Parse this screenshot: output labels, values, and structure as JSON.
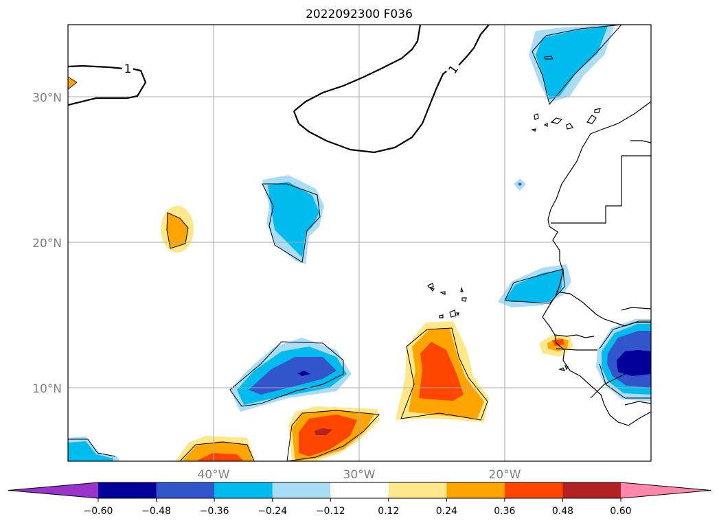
{
  "title": "2022092300 F036",
  "latitude_labels": [
    "30°N",
    "20°N",
    "10°N"
  ],
  "longitude_labels": [
    "40°W",
    "30°W",
    "20°W"
  ],
  "contour_label": "1",
  "colorbar": {
    "ticks": [
      "−0.60",
      "−0.48",
      "−0.36",
      "−0.24",
      "−0.12",
      "0.12",
      "0.24",
      "0.36",
      "0.48",
      "0.60"
    ],
    "colors": [
      "#9933cc",
      "#000099",
      "#3355cc",
      "#00bbee",
      "#aaddf5",
      "#ffffff",
      "#ffe88a",
      "#ffa500",
      "#ff4500",
      "#b22222",
      "#ff88aa"
    ]
  }
}
